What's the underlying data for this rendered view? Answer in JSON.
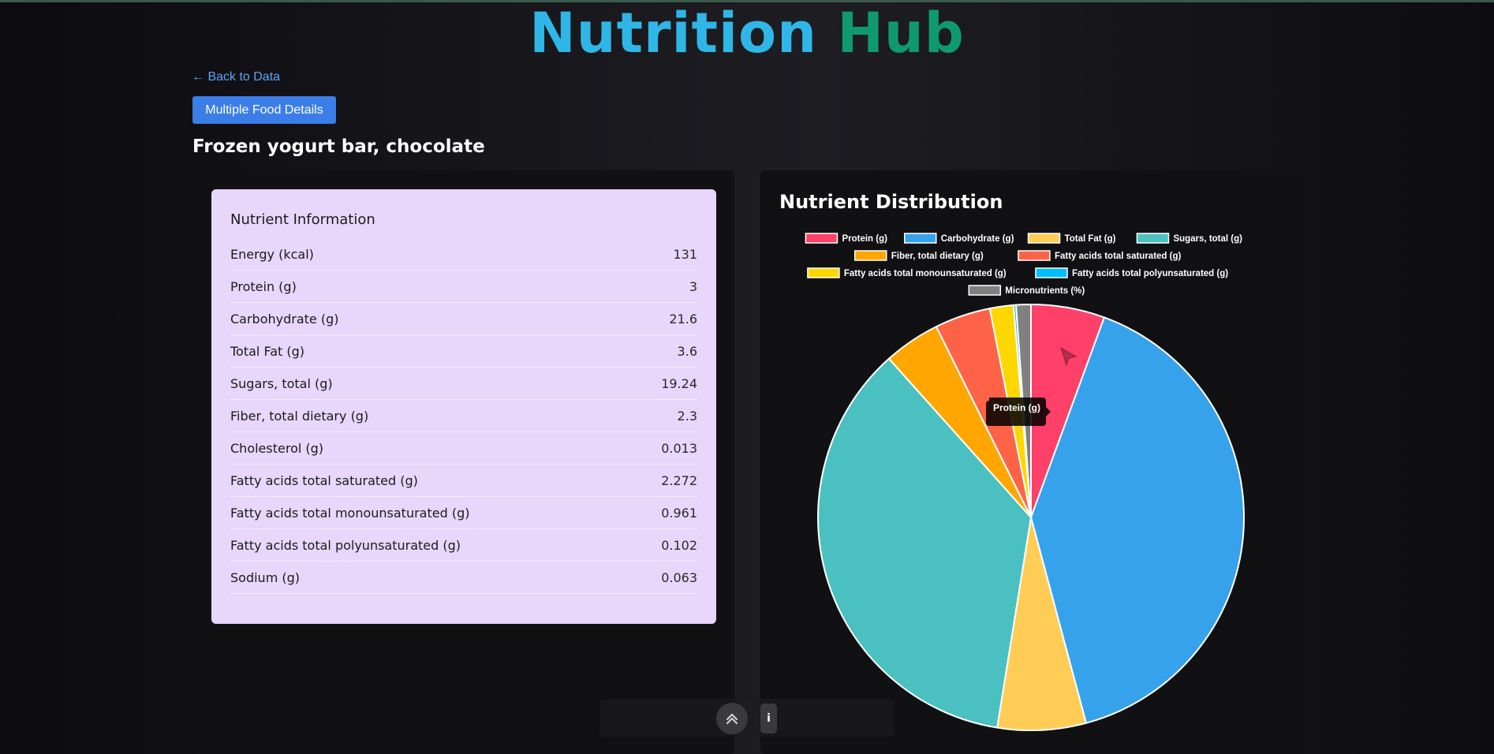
{
  "app": {
    "title_part1": "Nutrition",
    "title_part2": "Hub",
    "title_color1": "#2fb6e6",
    "title_color2": "#0f9a6e"
  },
  "nav": {
    "back_label": "← Back to Data",
    "multi_button_label": "Multiple Food Details"
  },
  "food": {
    "name": "Frozen yogurt bar, chocolate"
  },
  "nutrient_card": {
    "title": "Nutrient Information",
    "rows": [
      {
        "name": "Energy (kcal)",
        "value": "131"
      },
      {
        "name": "Protein (g)",
        "value": "3"
      },
      {
        "name": "Carbohydrate (g)",
        "value": "21.6"
      },
      {
        "name": "Total Fat (g)",
        "value": "3.6"
      },
      {
        "name": "Sugars, total (g)",
        "value": "19.24"
      },
      {
        "name": "Fiber, total dietary (g)",
        "value": "2.3"
      },
      {
        "name": "Cholesterol (g)",
        "value": "0.013"
      },
      {
        "name": "Fatty acids total saturated (g)",
        "value": "2.272"
      },
      {
        "name": "Fatty acids total monounsaturated (g)",
        "value": "0.961"
      },
      {
        "name": "Fatty acids total polyunsaturated (g)",
        "value": "0.102"
      },
      {
        "name": "Sodium (g)",
        "value": "0.063"
      }
    ]
  },
  "distribution": {
    "title": "Nutrient Distribution"
  },
  "chart_data": {
    "type": "pie",
    "title": "Nutrient Distribution",
    "legend_position": "top",
    "categories": [
      "Protein (g)",
      "Carbohydrate (g)",
      "Total Fat (g)",
      "Sugars, total (g)",
      "Fiber, total dietary (g)",
      "Fatty acids total saturated (g)",
      "Fatty acids total monounsaturated (g)",
      "Fatty acids total polyunsaturated (g)",
      "Micronutrients (%)"
    ],
    "values": [
      3,
      21.6,
      3.6,
      19.24,
      2.3,
      2.272,
      0.961,
      0.102,
      0.6
    ],
    "colors": [
      "#ff4069",
      "#36a2eb",
      "#ffcd56",
      "#4bc0c0",
      "#ffa600",
      "#ff6347",
      "#ffd700",
      "#00bfff",
      "#808080"
    ],
    "tooltip": "Protein (g)"
  },
  "footer": {
    "info_label": "i"
  }
}
